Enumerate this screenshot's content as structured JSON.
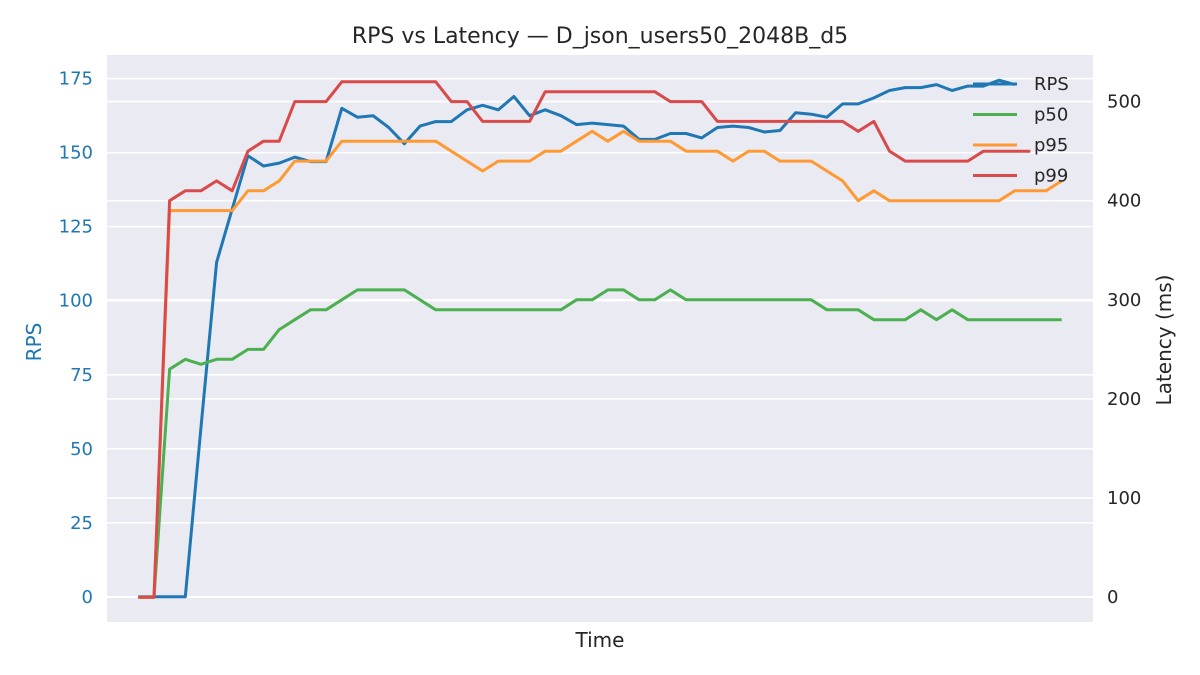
{
  "chart_data": {
    "type": "line",
    "title": "RPS vs Latency — D_json_users50_2048B_d5",
    "xlabel": "Time",
    "ylabel_left": "RPS",
    "ylabel_right": "Latency (ms)",
    "ylim_left": [
      -8.5,
      183
    ],
    "ylim_right": [
      -25,
      547
    ],
    "yticks_left": [
      0,
      25,
      50,
      75,
      100,
      125,
      150,
      175
    ],
    "yticks_right": [
      0,
      100,
      200,
      300,
      400,
      500
    ],
    "grid": true,
    "legend_position": "top-right",
    "colors": {
      "RPS": "#1f77b4",
      "p50": "#4caf50",
      "p95": "#ff9933",
      "p99": "#d94a4a",
      "left_axis": "#1f77b4",
      "right_axis": "#262626"
    },
    "xlim": [
      -1,
      62
    ],
    "x": [
      1,
      2,
      3,
      4,
      5,
      6,
      7,
      8,
      9,
      10,
      11,
      12,
      13,
      14,
      15,
      16,
      17,
      18,
      19,
      20,
      21,
      22,
      23,
      24,
      25,
      26,
      27,
      28,
      29,
      30,
      31,
      32,
      33,
      34,
      35,
      36,
      37,
      38,
      39,
      40,
      41,
      42,
      43,
      44,
      45,
      46,
      47,
      48,
      49,
      50,
      51,
      52,
      53,
      54,
      55,
      56,
      57,
      58,
      59,
      60
    ],
    "series": [
      {
        "name": "RPS",
        "axis": "left",
        "color": "#1f77b4",
        "values": [
          0,
          0,
          0,
          0,
          57,
          113,
          131,
          149,
          145.5,
          146.5,
          148.5,
          147,
          147,
          165,
          162,
          162.5,
          158.5,
          153,
          159,
          160.5,
          160.5,
          164.5,
          166,
          164.5,
          169,
          162.5,
          164.5,
          162.5,
          159.5,
          160,
          159.5,
          159,
          154.5,
          154.5,
          156.5,
          156.5,
          155,
          158.5,
          159,
          158.5,
          157,
          157.5,
          163.5,
          163,
          162,
          166.5,
          166.5,
          168.5,
          171,
          172,
          172,
          173,
          171,
          172.5,
          172.5,
          174.5,
          173,
          null,
          null,
          null
        ]
      },
      {
        "name": "p50",
        "axis": "right",
        "color": "#4caf50",
        "values": [
          0,
          0,
          230,
          240,
          235,
          240,
          240,
          250,
          250,
          270,
          280,
          290,
          290,
          300,
          310,
          310,
          310,
          310,
          300,
          290,
          290,
          290,
          290,
          290,
          290,
          290,
          290,
          290,
          300,
          300,
          310,
          310,
          300,
          300,
          310,
          300,
          300,
          300,
          300,
          300,
          300,
          300,
          300,
          300,
          290,
          290,
          290,
          280,
          280,
          280,
          290,
          280,
          290,
          280,
          280,
          280,
          280,
          280,
          280,
          280
        ]
      },
      {
        "name": "p95",
        "axis": "right",
        "color": "#ff9933",
        "values": [
          0,
          0,
          390,
          390,
          390,
          390,
          390,
          410,
          410,
          420,
          440,
          440,
          440,
          460,
          460,
          460,
          460,
          460,
          460,
          460,
          450,
          440,
          430,
          440,
          440,
          440,
          450,
          450,
          460,
          470,
          460,
          470,
          460,
          460,
          460,
          450,
          450,
          450,
          440,
          450,
          450,
          440,
          440,
          440,
          430,
          420,
          400,
          410,
          400,
          400,
          400,
          400,
          400,
          400,
          400,
          400,
          410,
          410,
          410,
          420
        ]
      },
      {
        "name": "p99",
        "axis": "right",
        "color": "#d94a4a",
        "values": [
          0,
          0,
          400,
          410,
          410,
          420,
          410,
          450,
          460,
          460,
          500,
          500,
          500,
          520,
          520,
          520,
          520,
          520,
          520,
          520,
          500,
          500,
          480,
          480,
          480,
          480,
          510,
          510,
          510,
          510,
          510,
          510,
          510,
          510,
          500,
          500,
          500,
          480,
          480,
          480,
          480,
          480,
          480,
          480,
          480,
          480,
          470,
          480,
          450,
          440,
          440,
          440,
          440,
          440,
          450,
          450,
          450,
          450,
          null,
          null
        ]
      }
    ]
  }
}
